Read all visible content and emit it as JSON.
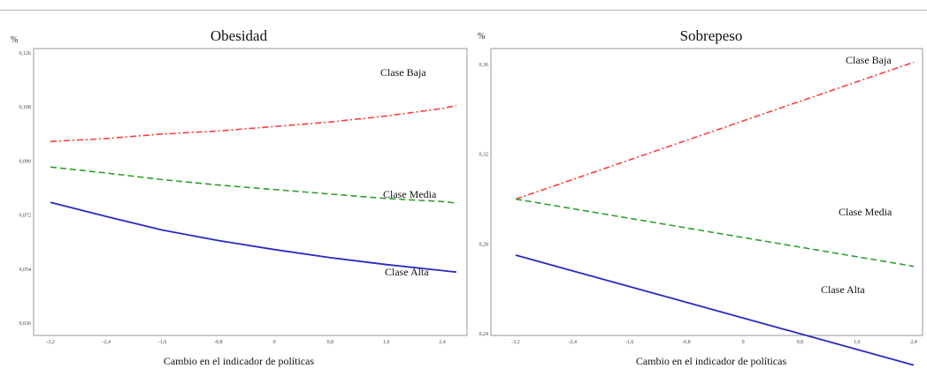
{
  "chart_data": [
    {
      "type": "line",
      "title": "Obesidad",
      "ylabel": "%",
      "xlabel": "Cambio en el indicador de políticas",
      "xlim": [
        -3.2,
        2.4
      ],
      "ylim": [
        0.036,
        0.126
      ],
      "x_ticks": [
        -3.2,
        -2.4,
        -1.6,
        -0.8,
        0,
        0.8,
        1.6,
        2.4
      ],
      "x_tick_labels": [
        "-3,2",
        "-2,4",
        "-1,6",
        "-0,8",
        "0",
        "0,8",
        "1,6",
        "2,4"
      ],
      "y_ticks": [
        0.036,
        0.054,
        0.072,
        0.09,
        0.108,
        0.126
      ],
      "y_tick_labels": [
        "0,036",
        "0,054",
        "0,072",
        "0,090",
        "0,108",
        "0,126"
      ],
      "grid": false,
      "series": [
        {
          "name": "Clase Baja",
          "color": "#ff3b3b",
          "style": "dashdot",
          "x": [
            -3.2,
            -2.4,
            -1.6,
            -0.8,
            0,
            0.8,
            1.6,
            2.4,
            2.6
          ],
          "y": [
            0.0965,
            0.0975,
            0.099,
            0.1,
            0.1015,
            0.103,
            0.105,
            0.1075,
            0.1085
          ]
        },
        {
          "name": "Clase Media",
          "color": "#2e9e2e",
          "style": "dashed",
          "x": [
            -3.2,
            -2.4,
            -1.6,
            -0.8,
            0,
            0.8,
            1.6,
            2.4,
            2.6
          ],
          "y": [
            0.088,
            0.086,
            0.0838,
            0.082,
            0.0805,
            0.079,
            0.0775,
            0.0765,
            0.076
          ]
        },
        {
          "name": "Clase Alta",
          "color": "#2a2abf",
          "style": "solid",
          "x": [
            -3.2,
            -2.4,
            -1.6,
            -0.8,
            0,
            0.8,
            1.6,
            2.4,
            2.6
          ],
          "y": [
            0.0762,
            0.0715,
            0.067,
            0.0635,
            0.0605,
            0.0578,
            0.0555,
            0.0535,
            0.053
          ]
        }
      ]
    },
    {
      "type": "line",
      "title": "Sobrepeso",
      "ylabel": "%",
      "xlabel": "Cambio en el indicador de políticas",
      "xlim": [
        -3.2,
        2.4
      ],
      "ylim": [
        0.24,
        0.36
      ],
      "x_ticks": [
        -3.2,
        -2.4,
        -1.6,
        -0.8,
        0,
        0.8,
        1.6,
        2.4
      ],
      "x_tick_labels": [
        "-3,2",
        "-2,4",
        "-1,6",
        "-0,8",
        "0",
        "0,8",
        "1,6",
        "2,4"
      ],
      "y_ticks": [
        0.24,
        0.28,
        0.32,
        0.36
      ],
      "y_tick_labels": [
        "0,24",
        "0,28",
        "0,32",
        "0,36"
      ],
      "grid": false,
      "series": [
        {
          "name": "Clase Baja",
          "color": "#ff3b3b",
          "style": "dashdot",
          "x": [
            -3.2,
            2.4
          ],
          "y": [
            0.3,
            0.361
          ]
        },
        {
          "name": "Clase Media",
          "color": "#2e9e2e",
          "style": "dashed",
          "x": [
            -3.2,
            2.4
          ],
          "y": [
            0.3,
            0.27
          ]
        },
        {
          "name": "Clase Alta",
          "color": "#2a2abf",
          "style": "solid",
          "x": [
            -3.2,
            2.4
          ],
          "y": [
            0.275,
            0.226
          ]
        }
      ]
    }
  ]
}
